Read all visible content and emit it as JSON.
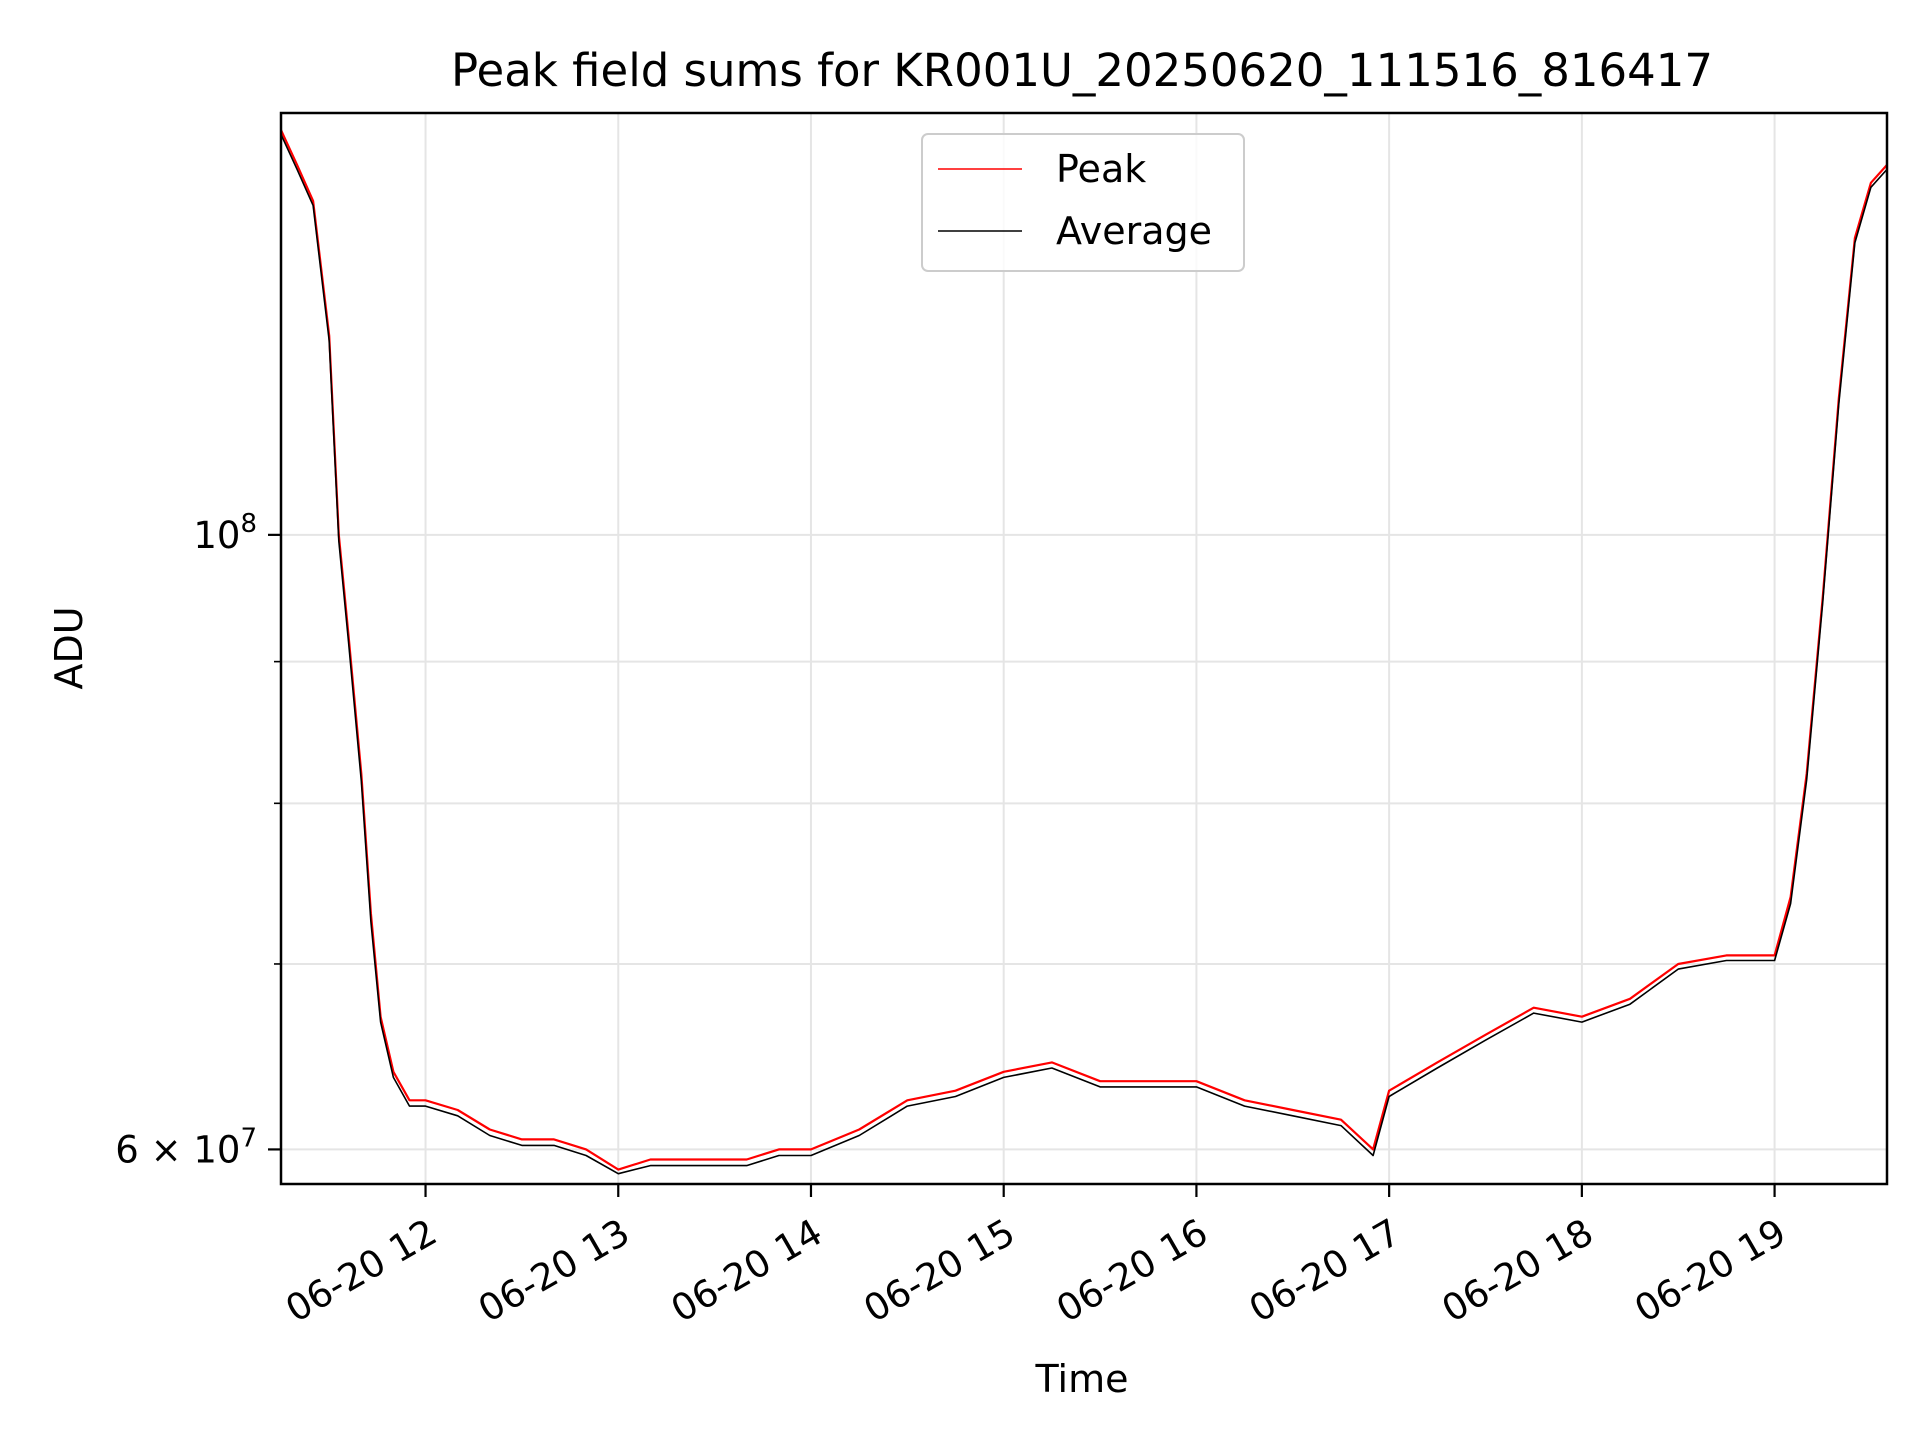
{
  "chart_data": {
    "type": "line",
    "title": "Peak field sums for KR001U_20250620_111516_816417",
    "xlabel": "Time",
    "ylabel": "ADU",
    "y_scale": "log",
    "grid": true,
    "legend_position": "top-center",
    "xlim": [
      "2025-06-20 11:15",
      "2025-06-20 19:35"
    ],
    "ylim": [
      58300000,
      142000000
    ],
    "x_ticks": [
      {
        "value": "2025-06-20 12:00",
        "label": "06-20 12"
      },
      {
        "value": "2025-06-20 13:00",
        "label": "06-20 13"
      },
      {
        "value": "2025-06-20 14:00",
        "label": "06-20 14"
      },
      {
        "value": "2025-06-20 15:00",
        "label": "06-20 15"
      },
      {
        "value": "2025-06-20 16:00",
        "label": "06-20 16"
      },
      {
        "value": "2025-06-20 17:00",
        "label": "06-20 17"
      },
      {
        "value": "2025-06-20 18:00",
        "label": "06-20 18"
      },
      {
        "value": "2025-06-20 19:00",
        "label": "06-20 19"
      }
    ],
    "y_major_ticks": [
      {
        "value": 60000000,
        "base": "6 × 10",
        "exp": "7"
      },
      {
        "value": 100000000,
        "base": "10",
        "exp": "8"
      }
    ],
    "y_minor_ticks": [
      70000000,
      80000000,
      90000000
    ],
    "series": [
      {
        "name": "Peak",
        "color": "#ff0000",
        "x": [
          "2025-06-20 11:15",
          "2025-06-20 11:20",
          "2025-06-20 11:25",
          "2025-06-20 11:30",
          "2025-06-20 11:33",
          "2025-06-20 11:36",
          "2025-06-20 11:40",
          "2025-06-20 11:43",
          "2025-06-20 11:46",
          "2025-06-20 11:50",
          "2025-06-20 11:55",
          "2025-06-20 12:00",
          "2025-06-20 12:10",
          "2025-06-20 12:20",
          "2025-06-20 12:30",
          "2025-06-20 12:40",
          "2025-06-20 12:50",
          "2025-06-20 13:00",
          "2025-06-20 13:10",
          "2025-06-20 13:20",
          "2025-06-20 13:30",
          "2025-06-20 13:40",
          "2025-06-20 13:50",
          "2025-06-20 14:00",
          "2025-06-20 14:15",
          "2025-06-20 14:30",
          "2025-06-20 14:45",
          "2025-06-20 15:00",
          "2025-06-20 15:15",
          "2025-06-20 15:30",
          "2025-06-20 15:45",
          "2025-06-20 16:00",
          "2025-06-20 16:15",
          "2025-06-20 16:30",
          "2025-06-20 16:45",
          "2025-06-20 16:55",
          "2025-06-20 17:00",
          "2025-06-20 17:15",
          "2025-06-20 17:30",
          "2025-06-20 17:45",
          "2025-06-20 18:00",
          "2025-06-20 18:15",
          "2025-06-20 18:30",
          "2025-06-20 18:45",
          "2025-06-20 19:00",
          "2025-06-20 19:05",
          "2025-06-20 19:10",
          "2025-06-20 19:15",
          "2025-06-20 19:20",
          "2025-06-20 19:25",
          "2025-06-20 19:30",
          "2025-06-20 19:35"
        ],
        "y": [
          140000000,
          136000000,
          132000000,
          118000000,
          100000000,
          92000000,
          82000000,
          73000000,
          67000000,
          64000000,
          62500000,
          62500000,
          62000000,
          61000000,
          60500000,
          60500000,
          60000000,
          59000000,
          59500000,
          59500000,
          59500000,
          59500000,
          60000000,
          60000000,
          61000000,
          62500000,
          63000000,
          64000000,
          64500000,
          63500000,
          63500000,
          63500000,
          62500000,
          62000000,
          61500000,
          60000000,
          63000000,
          64500000,
          66000000,
          67500000,
          67000000,
          68000000,
          70000000,
          70500000,
          70500000,
          74000000,
          82000000,
          95000000,
          112000000,
          128000000,
          134000000,
          136000000
        ]
      },
      {
        "name": "Average",
        "color": "#000000",
        "x": [
          "2025-06-20 11:15",
          "2025-06-20 11:20",
          "2025-06-20 11:25",
          "2025-06-20 11:30",
          "2025-06-20 11:33",
          "2025-06-20 11:36",
          "2025-06-20 11:40",
          "2025-06-20 11:43",
          "2025-06-20 11:46",
          "2025-06-20 11:50",
          "2025-06-20 11:55",
          "2025-06-20 12:00",
          "2025-06-20 12:10",
          "2025-06-20 12:20",
          "2025-06-20 12:30",
          "2025-06-20 12:40",
          "2025-06-20 12:50",
          "2025-06-20 13:00",
          "2025-06-20 13:10",
          "2025-06-20 13:20",
          "2025-06-20 13:30",
          "2025-06-20 13:40",
          "2025-06-20 13:50",
          "2025-06-20 14:00",
          "2025-06-20 14:15",
          "2025-06-20 14:30",
          "2025-06-20 14:45",
          "2025-06-20 15:00",
          "2025-06-20 15:15",
          "2025-06-20 15:30",
          "2025-06-20 15:45",
          "2025-06-20 16:00",
          "2025-06-20 16:15",
          "2025-06-20 16:30",
          "2025-06-20 16:45",
          "2025-06-20 16:55",
          "2025-06-20 17:00",
          "2025-06-20 17:15",
          "2025-06-20 17:30",
          "2025-06-20 17:45",
          "2025-06-20 18:00",
          "2025-06-20 18:15",
          "2025-06-20 18:30",
          "2025-06-20 18:45",
          "2025-06-20 19:00",
          "2025-06-20 19:05",
          "2025-06-20 19:10",
          "2025-06-20 19:15",
          "2025-06-20 19:20",
          "2025-06-20 19:25",
          "2025-06-20 19:30",
          "2025-06-20 19:35"
        ],
        "y": [
          139500000,
          135500000,
          131500000,
          117500000,
          99500000,
          91500000,
          81500000,
          72500000,
          66700000,
          63700000,
          62200000,
          62200000,
          61700000,
          60700000,
          60200000,
          60200000,
          59700000,
          58800000,
          59200000,
          59200000,
          59200000,
          59200000,
          59700000,
          59700000,
          60700000,
          62200000,
          62700000,
          63700000,
          64200000,
          63200000,
          63200000,
          63200000,
          62200000,
          61700000,
          61200000,
          59700000,
          62700000,
          64200000,
          65700000,
          67200000,
          66700000,
          67700000,
          69700000,
          70200000,
          70200000,
          73600000,
          81600000,
          94600000,
          111500000,
          127500000,
          133500000,
          135500000
        ]
      }
    ]
  }
}
